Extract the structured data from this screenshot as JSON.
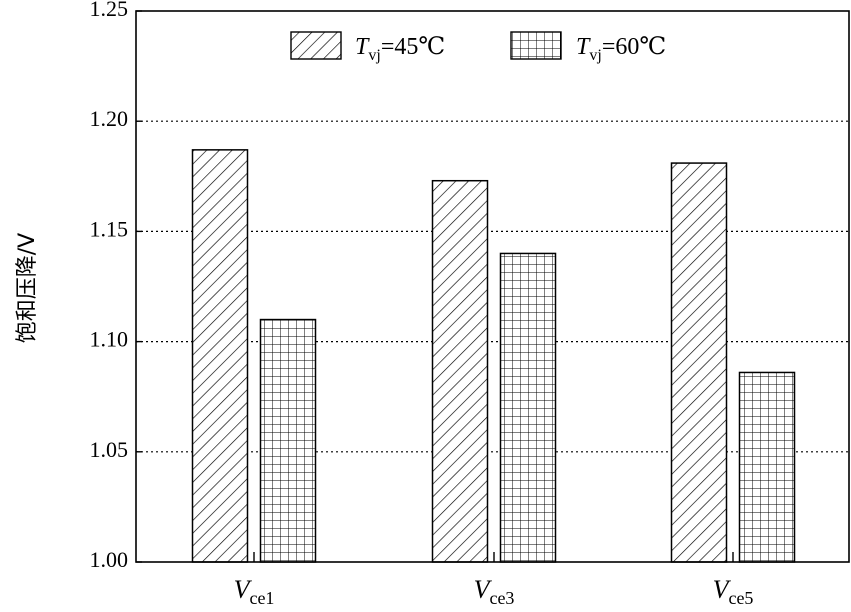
{
  "chart_data": {
    "type": "bar",
    "ylabel": "饱和压降/V",
    "ylim": [
      1.0,
      1.25
    ],
    "yticks": [
      "1.00",
      "1.05",
      "1.10",
      "1.15",
      "1.20",
      "1.25"
    ],
    "ytick_values": [
      1.0,
      1.05,
      1.1,
      1.15,
      1.2,
      1.25
    ],
    "grid": "horizontal dotted",
    "legend_position": "top-right",
    "categories": [
      {
        "main": "V",
        "sub": "ce1"
      },
      {
        "main": "V",
        "sub": "ce3"
      },
      {
        "main": "V",
        "sub": "ce5"
      }
    ],
    "series": [
      {
        "name": "Tvj=45℃",
        "label_main": "T",
        "label_sub": "vj",
        "label_rest": "=45℃",
        "pattern": "diagonal-hatch",
        "values": [
          1.187,
          1.173,
          1.181
        ]
      },
      {
        "name": "Tvj=60℃",
        "label_main": "T",
        "label_sub": "vj",
        "label_rest": "=60℃",
        "pattern": "grid-hatch",
        "values": [
          1.11,
          1.14,
          1.086
        ]
      }
    ]
  }
}
